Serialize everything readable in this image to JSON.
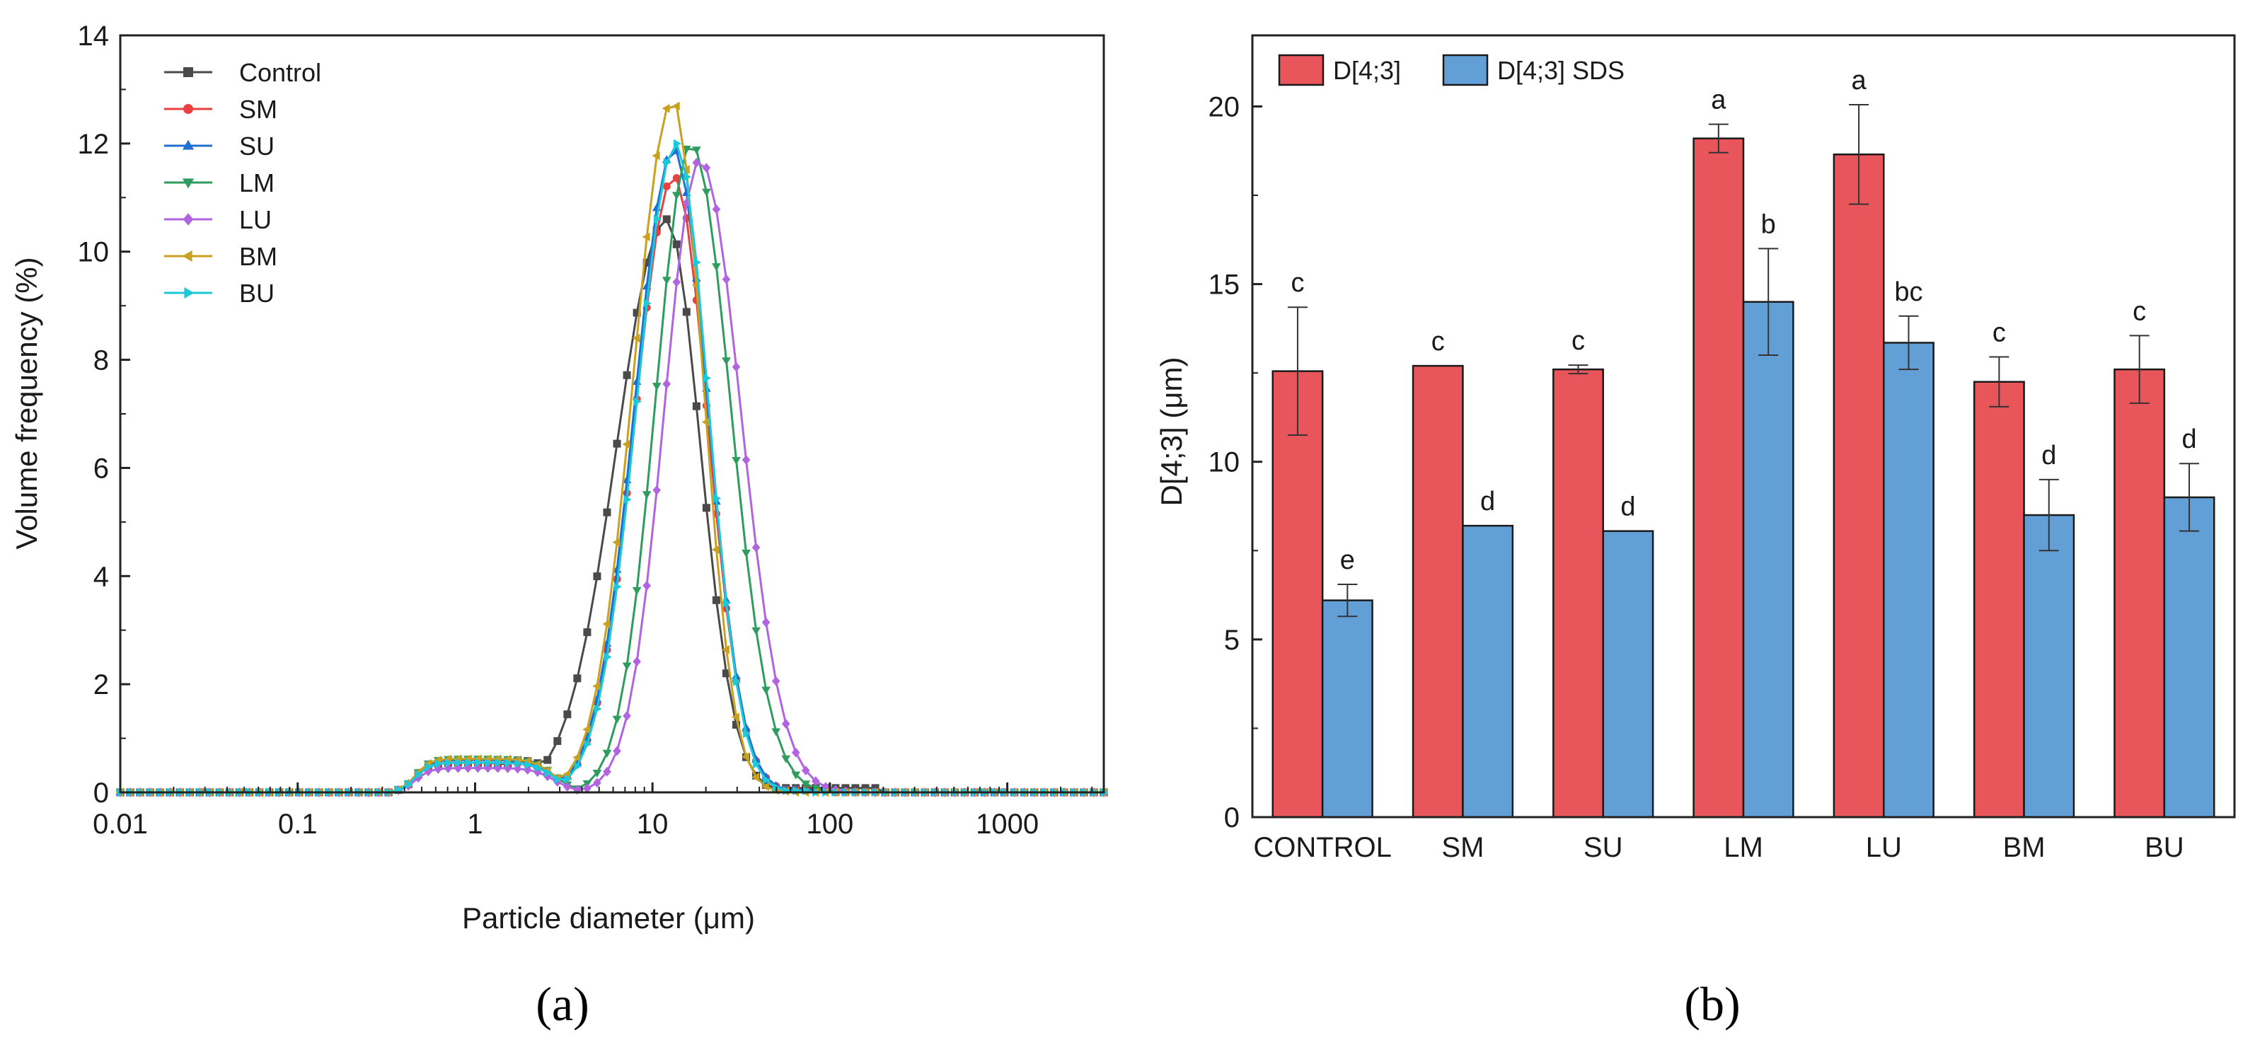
{
  "figure": {
    "label_a": "(a)",
    "label_b": "(b)"
  },
  "chart_data": [
    {
      "type": "line",
      "panel": "a",
      "title": "",
      "xlabel": "Particle diameter (μm)",
      "ylabel": "Volume frequency (%)",
      "xscale": "log",
      "xlim": [
        0.01,
        3500
      ],
      "ylim": [
        0,
        14
      ],
      "xticks": [
        0.01,
        0.1,
        1,
        10,
        100,
        1000
      ],
      "xtick_labels": [
        "0.01",
        "0.1",
        "1",
        "10",
        "100",
        "1000"
      ],
      "yticks": [
        0,
        2,
        4,
        6,
        8,
        10,
        12,
        14
      ],
      "ytick_labels": [
        "0",
        "2",
        "4",
        "6",
        "8",
        "10",
        "12",
        "14"
      ],
      "legend_position": "top-left",
      "series": [
        {
          "name": "Control",
          "color": "#4a4a4a",
          "marker": "square",
          "profile": {
            "bump_height": 0.55,
            "bump_start": 0.35,
            "bump_end": 2.0,
            "trough": 0.6,
            "trough_at": 2.3,
            "peak": 10.6,
            "peak_at": 12.0,
            "left_width": 0.28,
            "right_width": 0.19,
            "tail": 0.08,
            "tail_end": 200
          }
        },
        {
          "name": "SM",
          "color": "#e8413f",
          "marker": "circle",
          "profile": {
            "bump_height": 0.55,
            "bump_start": 0.35,
            "bump_end": 2.5,
            "trough": 0.05,
            "trough_at": 3.5,
            "peak": 11.4,
            "peak_at": 13.2,
            "left_width": 0.22,
            "right_width": 0.19,
            "tail": 0.05,
            "tail_end": 100
          }
        },
        {
          "name": "SU",
          "color": "#1f6fd0",
          "marker": "triangle-up",
          "profile": {
            "bump_height": 0.6,
            "bump_start": 0.35,
            "bump_end": 2.5,
            "trough": 0.05,
            "trough_at": 3.5,
            "peak": 11.9,
            "peak_at": 13.2,
            "left_width": 0.22,
            "right_width": 0.19,
            "tail": 0.05,
            "tail_end": 100
          }
        },
        {
          "name": "LM",
          "color": "#2e9b5f",
          "marker": "triangle-down",
          "profile": {
            "bump_height": 0.62,
            "bump_start": 0.35,
            "bump_end": 2.5,
            "trough": 0.05,
            "trough_at": 3.8,
            "peak": 12.0,
            "peak_at": 16.5,
            "left_width": 0.2,
            "right_width": 0.22,
            "tail": 0.03,
            "tail_end": 70
          }
        },
        {
          "name": "LU",
          "color": "#b064e0",
          "marker": "diamond",
          "profile": {
            "bump_height": 0.45,
            "bump_start": 0.35,
            "bump_end": 2.5,
            "trough": 0.05,
            "trough_at": 3.8,
            "peak": 11.7,
            "peak_at": 18.5,
            "left_width": 0.2,
            "right_width": 0.23,
            "tail": 0.03,
            "tail_end": 70
          }
        },
        {
          "name": "BM",
          "color": "#c9a020",
          "marker": "triangle-left",
          "profile": {
            "bump_height": 0.62,
            "bump_start": 0.35,
            "bump_end": 2.5,
            "trough": 0.05,
            "trough_at": 3.3,
            "peak": 12.8,
            "peak_at": 13.0,
            "left_width": 0.22,
            "right_width": 0.17,
            "tail": 0.02,
            "tail_end": 60
          }
        },
        {
          "name": "BU",
          "color": "#1fc8d8",
          "marker": "triangle-right",
          "profile": {
            "bump_height": 0.55,
            "bump_start": 0.35,
            "bump_end": 2.5,
            "trough": 0.05,
            "trough_at": 3.5,
            "peak": 12.0,
            "peak_at": 13.6,
            "left_width": 0.22,
            "right_width": 0.18,
            "tail": 0.03,
            "tail_end": 80
          }
        }
      ]
    },
    {
      "type": "bar",
      "panel": "b",
      "title": "",
      "xlabel": "",
      "ylabel": "D[4;3] (μm)",
      "ylim": [
        0,
        22
      ],
      "yticks": [
        0,
        5,
        10,
        15,
        20
      ],
      "ytick_labels": [
        "0",
        "5",
        "10",
        "15",
        "20"
      ],
      "categories": [
        "CONTROL",
        "SM",
        "SU",
        "LM",
        "LU",
        "BM",
        "BU"
      ],
      "legend_position": "top-left",
      "series": [
        {
          "name": "D[4;3]",
          "color": "#e8555a",
          "values": [
            12.55,
            12.7,
            12.6,
            19.1,
            18.65,
            12.25,
            12.6
          ],
          "errors": [
            1.8,
            0,
            0.12,
            0.4,
            1.4,
            0.7,
            0.95
          ],
          "significance": [
            "c",
            "c",
            "c",
            "a",
            "a",
            "c",
            "c"
          ]
        },
        {
          "name": "D[4;3] SDS",
          "color": "#629fd6",
          "values": [
            6.1,
            8.2,
            8.05,
            14.5,
            13.35,
            8.5,
            9.0
          ],
          "errors": [
            0.45,
            0,
            0,
            1.5,
            0.75,
            1.0,
            0.95
          ],
          "significance": [
            "e",
            "d",
            "d",
            "b",
            "bc",
            "d",
            "d"
          ]
        }
      ]
    }
  ]
}
